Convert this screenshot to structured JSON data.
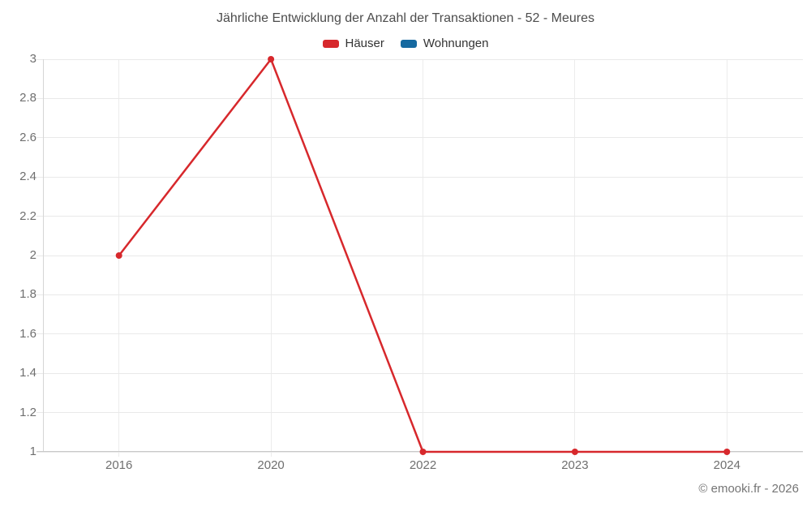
{
  "title": "Jährliche Entwicklung der Anzahl der Transaktionen - 52 - Meures",
  "legend": [
    {
      "label": "Häuser",
      "color": "#d7282c"
    },
    {
      "label": "Wohnungen",
      "color": "#1569a0"
    }
  ],
  "footer": {
    "credit": "© emooki.fr - 2026"
  },
  "colors": {
    "hauser_red": "#d7282c",
    "wohnungen_blue": "#1569a0",
    "grid": "#e9e9e9",
    "axis": "#c9c9c9",
    "tick_text": "#6f6f6f"
  },
  "chart_data": {
    "type": "line",
    "title": "Jährliche Entwicklung der Anzahl der Transaktionen - 52 - Meures",
    "categories": [
      "2016",
      "2020",
      "2022",
      "2023",
      "2024"
    ],
    "series": [
      {
        "name": "Häuser",
        "color": "#d7282c",
        "values": [
          2,
          3,
          1,
          1,
          1
        ]
      },
      {
        "name": "Wohnungen",
        "color": "#1569a0",
        "values": []
      }
    ],
    "xlabel": "",
    "ylabel": "",
    "ylim": [
      1,
      3
    ],
    "y_ticks": [
      1,
      1.2,
      1.4,
      1.6,
      1.8,
      2,
      2.2,
      2.4,
      2.6,
      2.8,
      3
    ],
    "grid": true,
    "legend_position": "top",
    "marker": "circle",
    "annotation": "© emooki.fr - 2026"
  }
}
